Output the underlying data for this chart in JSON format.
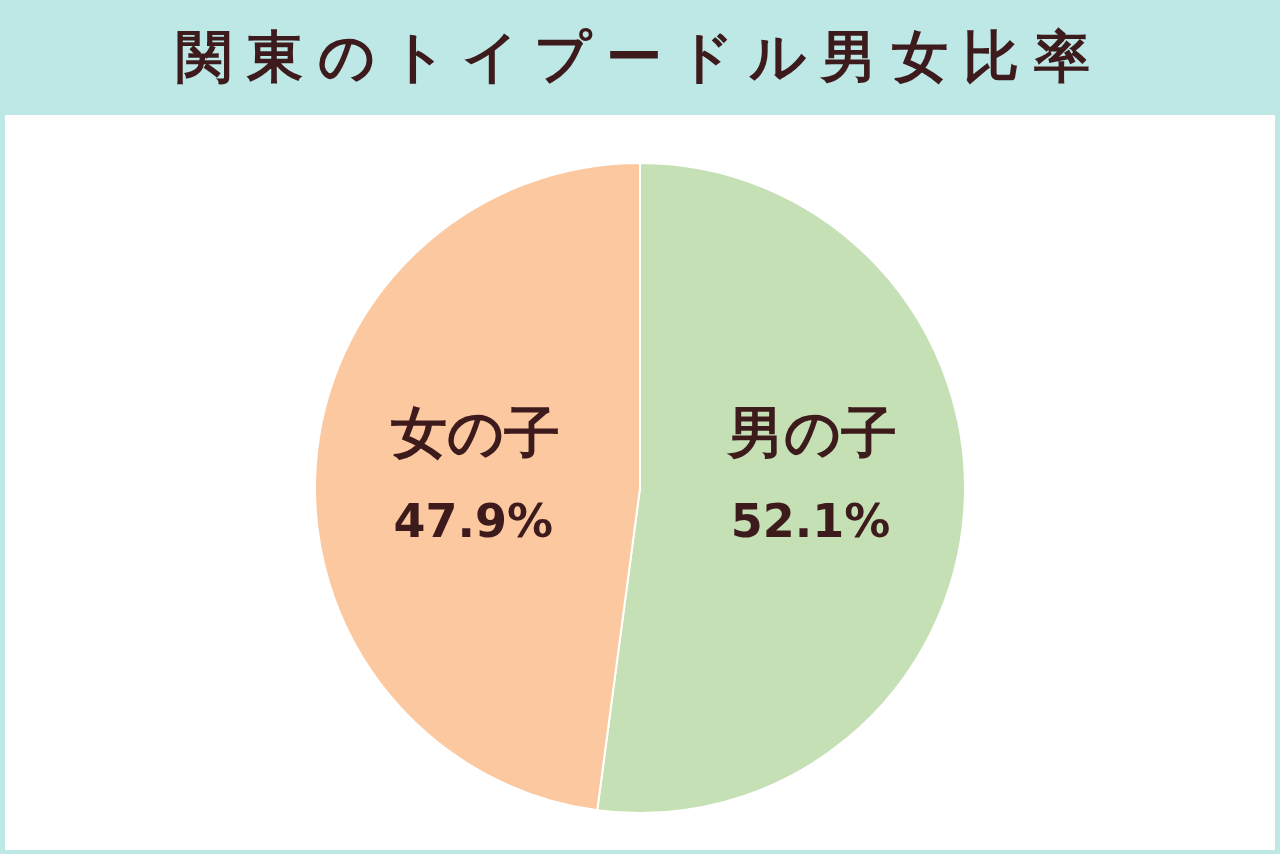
{
  "chart_data": {
    "type": "pie",
    "title": "関東のトイプードル男女比率",
    "categories": [
      "男の子",
      "女の子"
    ],
    "values": [
      52.1,
      47.9
    ],
    "colors": [
      "#c5e0b4",
      "#fcc8a0"
    ],
    "value_labels": [
      "52.1%",
      "47.9%"
    ]
  }
}
